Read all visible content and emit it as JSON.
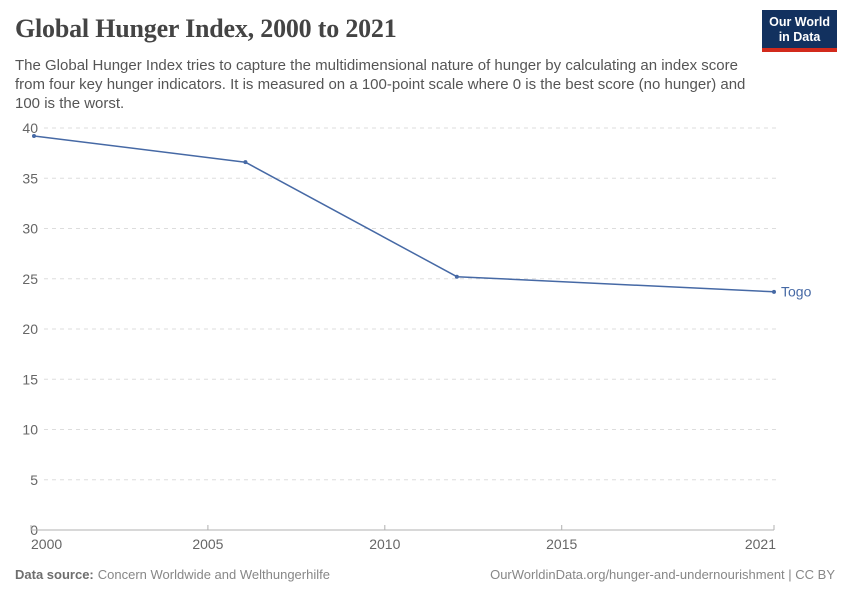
{
  "header": {
    "title": "Global Hunger Index, 2000 to 2021",
    "subtitle": "The Global Hunger Index tries to capture the multidimensional nature of hunger by calculating an index score from four key hunger indicators. It is measured on a 100-point scale where 0 is the best score (no hunger) and 100 is the worst.",
    "logo": {
      "line1": "Our World",
      "line2": "in Data"
    }
  },
  "chart_data": {
    "type": "line",
    "title": "Global Hunger Index, 2000 to 2021",
    "xlabel": "",
    "ylabel": "",
    "xlim": [
      2000,
      2021
    ],
    "ylim": [
      0,
      40
    ],
    "grid": "horizontal-dashed",
    "legend_position": "end-of-line-label",
    "series": [
      {
        "name": "Togo",
        "x": [
          2000,
          2006,
          2012,
          2021
        ],
        "values": [
          39.2,
          36.6,
          25.2,
          23.7
        ]
      }
    ],
    "x_ticks": [
      2000,
      2005,
      2010,
      2015,
      2021
    ],
    "x_tick_labels": [
      "2000",
      "2005",
      "2010",
      "2015",
      "2021"
    ],
    "y_ticks": [
      0,
      5,
      10,
      15,
      20,
      25,
      30,
      35,
      40
    ],
    "y_tick_labels": [
      "0",
      "5",
      "10",
      "15",
      "20",
      "25",
      "30",
      "35",
      "40"
    ]
  },
  "colors": {
    "line": "#4669a5",
    "grid": "#dddddd",
    "axis": "#b0b0b0",
    "tick_text": "#666666",
    "title_text": "#444444",
    "subtitle_text": "#555555",
    "footer_text": "#878787",
    "footer_label_text": "#6e6e6e",
    "logo_bg": "#12315f",
    "logo_red": "#d22a1c"
  },
  "footer": {
    "source_label": "Data source:",
    "source_value": "Concern Worldwide and Welthungerhilfe",
    "right_text": "OurWorldinData.org/hunger-and-undernourishment | CC BY"
  }
}
